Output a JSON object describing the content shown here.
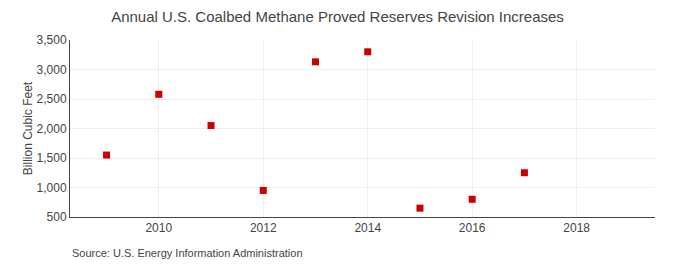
{
  "chart_data": {
    "type": "scatter",
    "title": "Annual U.S. Coalbed Methane Proved Reserves Revision Increases",
    "ylabel": "Billion Cubic Feet",
    "annotations": [
      "Source: U.S. Energy Information Administration"
    ],
    "x": [
      2009,
      2010,
      2011,
      2012,
      2013,
      2014,
      2015,
      2016,
      2017
    ],
    "values": [
      1550,
      2580,
      2050,
      950,
      3130,
      3300,
      650,
      800,
      1250
    ],
    "color": "#cc0000",
    "marker": "square",
    "xlim": [
      2008.3,
      2019.5
    ],
    "xticks": [
      2010,
      2012,
      2014,
      2016,
      2018
    ],
    "ylim": [
      500,
      3500
    ],
    "yticks": [
      500,
      {
        "value": 1000,
        "label": "1,000"
      },
      {
        "value": 1500,
        "label": "1,500"
      },
      {
        "value": 2000,
        "label": "2,000"
      },
      {
        "value": 2500,
        "label": "2,500"
      },
      {
        "value": 3000,
        "label": "3,000"
      },
      {
        "value": 3500,
        "label": "3,500"
      }
    ],
    "grid": true
  }
}
